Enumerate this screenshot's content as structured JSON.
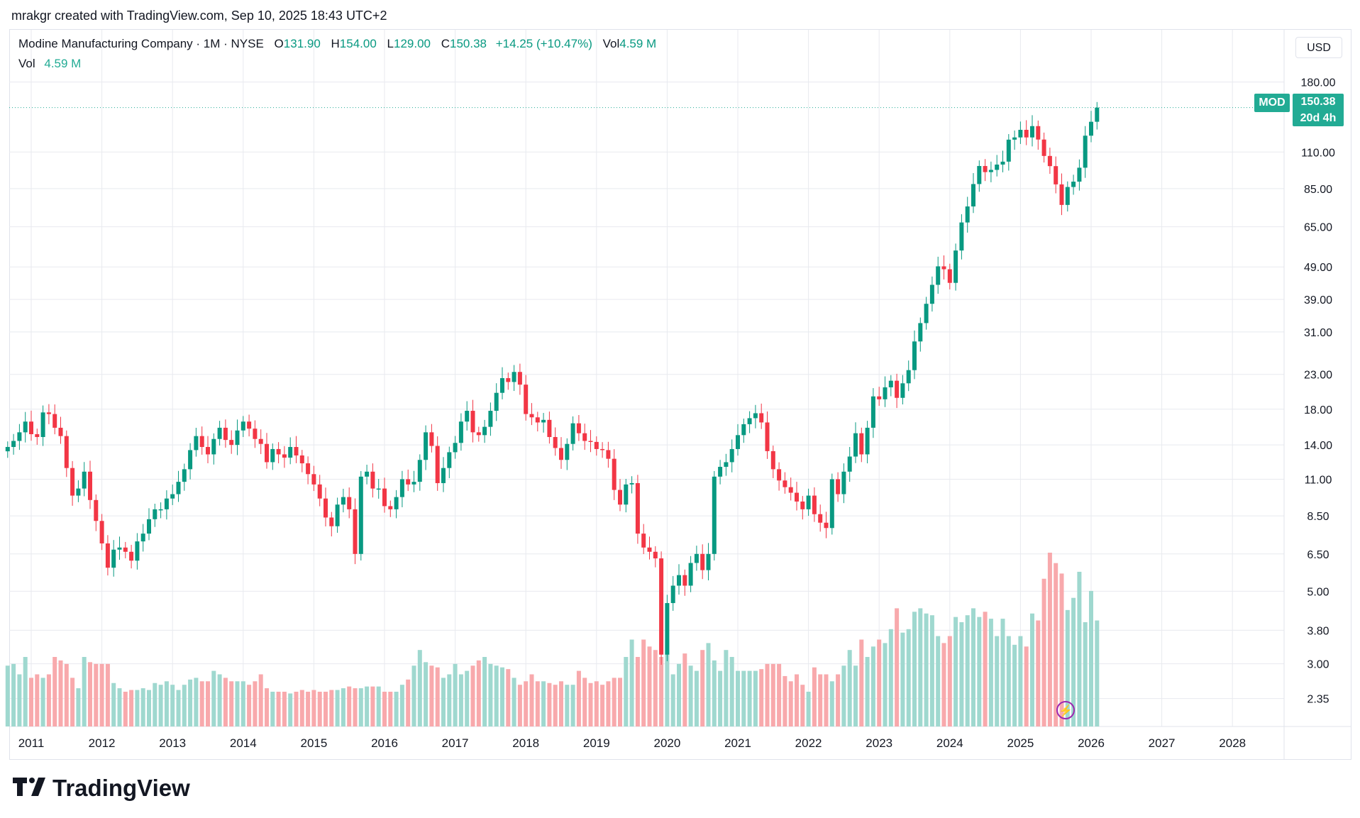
{
  "header": {
    "attribution": "mrakgr created with TradingView.com, Sep 10, 2025 18:43 UTC+2"
  },
  "legend": {
    "symbol": "Modine Manufacturing Company · 1M · NYSE",
    "open_label": "O",
    "open": "131.90",
    "high_label": "H",
    "high": "154.00",
    "low_label": "L",
    "low": "129.00",
    "close_label": "C",
    "close": "150.38",
    "change": "+14.25 (+10.47%)",
    "vol_label": "Vol",
    "vol": "4.59 M",
    "vol_line_label": "Vol",
    "vol_line_value": "4.59 M"
  },
  "price_scale": {
    "currency": "USD"
  },
  "last_price": {
    "ticker": "MOD",
    "price": "150.38",
    "countdown": "20d 4h"
  },
  "footer": {
    "brand": "TradingView"
  },
  "colors": {
    "up": "#089981",
    "down": "#f23645",
    "vol_up": "#9fd8cf",
    "vol_down": "#f8a9ac",
    "grid": "#e8eaef",
    "accent": "#22ab94"
  },
  "chart_data": {
    "type": "candlestick",
    "symbol": "MOD",
    "interval": "1M",
    "scale": "log",
    "x_ticks": [
      "2011",
      "2012",
      "2013",
      "2014",
      "2015",
      "2016",
      "2017",
      "2018",
      "2019",
      "2020",
      "2021",
      "2022",
      "2023",
      "2024",
      "2025",
      "2026",
      "2027",
      "2028"
    ],
    "y_ticks": [
      "180.00",
      "110.00",
      "85.00",
      "65.00",
      "49.00",
      "39.00",
      "31.00",
      "23.00",
      "18.00",
      "14.00",
      "11.00",
      "8.50",
      "6.50",
      "5.00",
      "3.80",
      "3.00",
      "2.35"
    ],
    "ylim": [
      1.93,
      260
    ],
    "x_start": "2010-09",
    "series": [
      {
        "name": "Price",
        "close": [
          13.8,
          14.4,
          15.3,
          16.5,
          15.1,
          14.8,
          17.6,
          17.4,
          15.8,
          14.9,
          11.9,
          9.8,
          10.3,
          11.6,
          9.5,
          8.2,
          7.0,
          5.9,
          6.7,
          6.8,
          6.6,
          6.2,
          7.1,
          7.5,
          8.3,
          8.9,
          8.9,
          9.6,
          9.9,
          10.8,
          11.8,
          13.5,
          14.9,
          13.8,
          13.1,
          14.6,
          15.8,
          14.5,
          14.0,
          15.5,
          16.5,
          15.7,
          14.6,
          14.1,
          12.4,
          13.6,
          13.1,
          12.8,
          13.8,
          13.0,
          12.3,
          11.4,
          10.6,
          9.6,
          8.4,
          7.9,
          9.2,
          9.7,
          8.9,
          6.5,
          11.2,
          11.6,
          10.3,
          10.3,
          9.1,
          8.9,
          9.7,
          11.0,
          10.6,
          10.8,
          12.6,
          15.3,
          13.9,
          10.7,
          11.9,
          13.3,
          14.2,
          16.5,
          17.8,
          15.3,
          15.0,
          15.9,
          17.8,
          20.2,
          22.4,
          21.8,
          23.4,
          21.4,
          17.4,
          17.0,
          16.4,
          16.7,
          14.8,
          13.7,
          12.6,
          14.1,
          16.3,
          15.2,
          14.4,
          14.3,
          13.6,
          13.5,
          12.7,
          10.2,
          9.2,
          10.6,
          10.7,
          7.5,
          6.8,
          6.6,
          6.3,
          3.2,
          4.6,
          5.2,
          5.6,
          5.2,
          6.1,
          6.5,
          5.8,
          6.5,
          11.2,
          12.0,
          12.4,
          13.6,
          15.0,
          16.2,
          16.9,
          17.5,
          16.4,
          13.4,
          11.8,
          10.9,
          10.4,
          10.0,
          9.4,
          8.9,
          9.8,
          8.6,
          8.1,
          7.8,
          11.0,
          9.9,
          11.6,
          12.9,
          15.2,
          13.1,
          15.8,
          19.7,
          19.3,
          21.0,
          22.0,
          19.5,
          21.6,
          23.7,
          29.0,
          33.0,
          37.8,
          43.2,
          49.2,
          48.2,
          43.8,
          55.0,
          67.0,
          75.0,
          87.8,
          99.7,
          95.5,
          97.0,
          100.7,
          102.8,
          120.0,
          121.9,
          128.6,
          121.9,
          132.0,
          120.1,
          107.0,
          99.6,
          87.6,
          75.8,
          86.0,
          89.3,
          98.5,
          123.4,
          136.1,
          150.38
        ],
        "markers_shown": "open/high/low per bar in original chart"
      },
      {
        "name": "Vol",
        "values_relative": [
          0.35,
          0.36,
          0.3,
          0.4,
          0.28,
          0.3,
          0.28,
          0.3,
          0.4,
          0.38,
          0.36,
          0.28,
          0.22,
          0.4,
          0.37,
          0.36,
          0.36,
          0.36,
          0.25,
          0.22,
          0.2,
          0.21,
          0.21,
          0.22,
          0.21,
          0.25,
          0.24,
          0.26,
          0.24,
          0.21,
          0.24,
          0.27,
          0.28,
          0.26,
          0.26,
          0.32,
          0.3,
          0.28,
          0.26,
          0.26,
          0.26,
          0.24,
          0.26,
          0.3,
          0.22,
          0.2,
          0.2,
          0.2,
          0.19,
          0.2,
          0.21,
          0.2,
          0.21,
          0.2,
          0.2,
          0.21,
          0.21,
          0.22,
          0.23,
          0.22,
          0.22,
          0.23,
          0.23,
          0.23,
          0.2,
          0.2,
          0.2,
          0.24,
          0.27,
          0.35,
          0.44,
          0.37,
          0.35,
          0.34,
          0.28,
          0.3,
          0.36,
          0.3,
          0.32,
          0.35,
          0.38,
          0.4,
          0.36,
          0.35,
          0.34,
          0.33,
          0.28,
          0.24,
          0.26,
          0.3,
          0.26,
          0.26,
          0.25,
          0.24,
          0.26,
          0.24,
          0.24,
          0.32,
          0.28,
          0.25,
          0.26,
          0.24,
          0.26,
          0.28,
          0.28,
          0.4,
          0.5,
          0.4,
          0.5,
          0.46,
          0.44,
          0.4,
          0.5,
          0.3,
          0.36,
          0.42,
          0.35,
          0.32,
          0.44,
          0.48,
          0.38,
          0.32,
          0.44,
          0.4,
          0.32,
          0.32,
          0.32,
          0.32,
          0.33,
          0.36,
          0.36,
          0.36,
          0.29,
          0.26,
          0.3,
          0.24,
          0.2,
          0.34,
          0.3,
          0.3,
          0.26,
          0.3,
          0.35,
          0.44,
          0.35,
          0.5,
          0.4,
          0.46,
          0.5,
          0.48,
          0.56,
          0.68,
          0.54,
          0.56,
          0.66,
          0.68,
          0.65,
          0.64,
          0.52,
          0.48,
          0.52,
          0.63,
          0.6,
          0.64,
          0.68,
          0.63,
          0.66,
          0.62,
          0.52,
          0.62,
          0.52,
          0.47,
          0.52,
          0.46,
          0.65,
          0.61,
          0.85,
          1.0,
          0.94,
          0.88,
          0.67,
          0.74,
          0.89,
          0.6,
          0.78,
          0.61
        ]
      }
    ]
  }
}
